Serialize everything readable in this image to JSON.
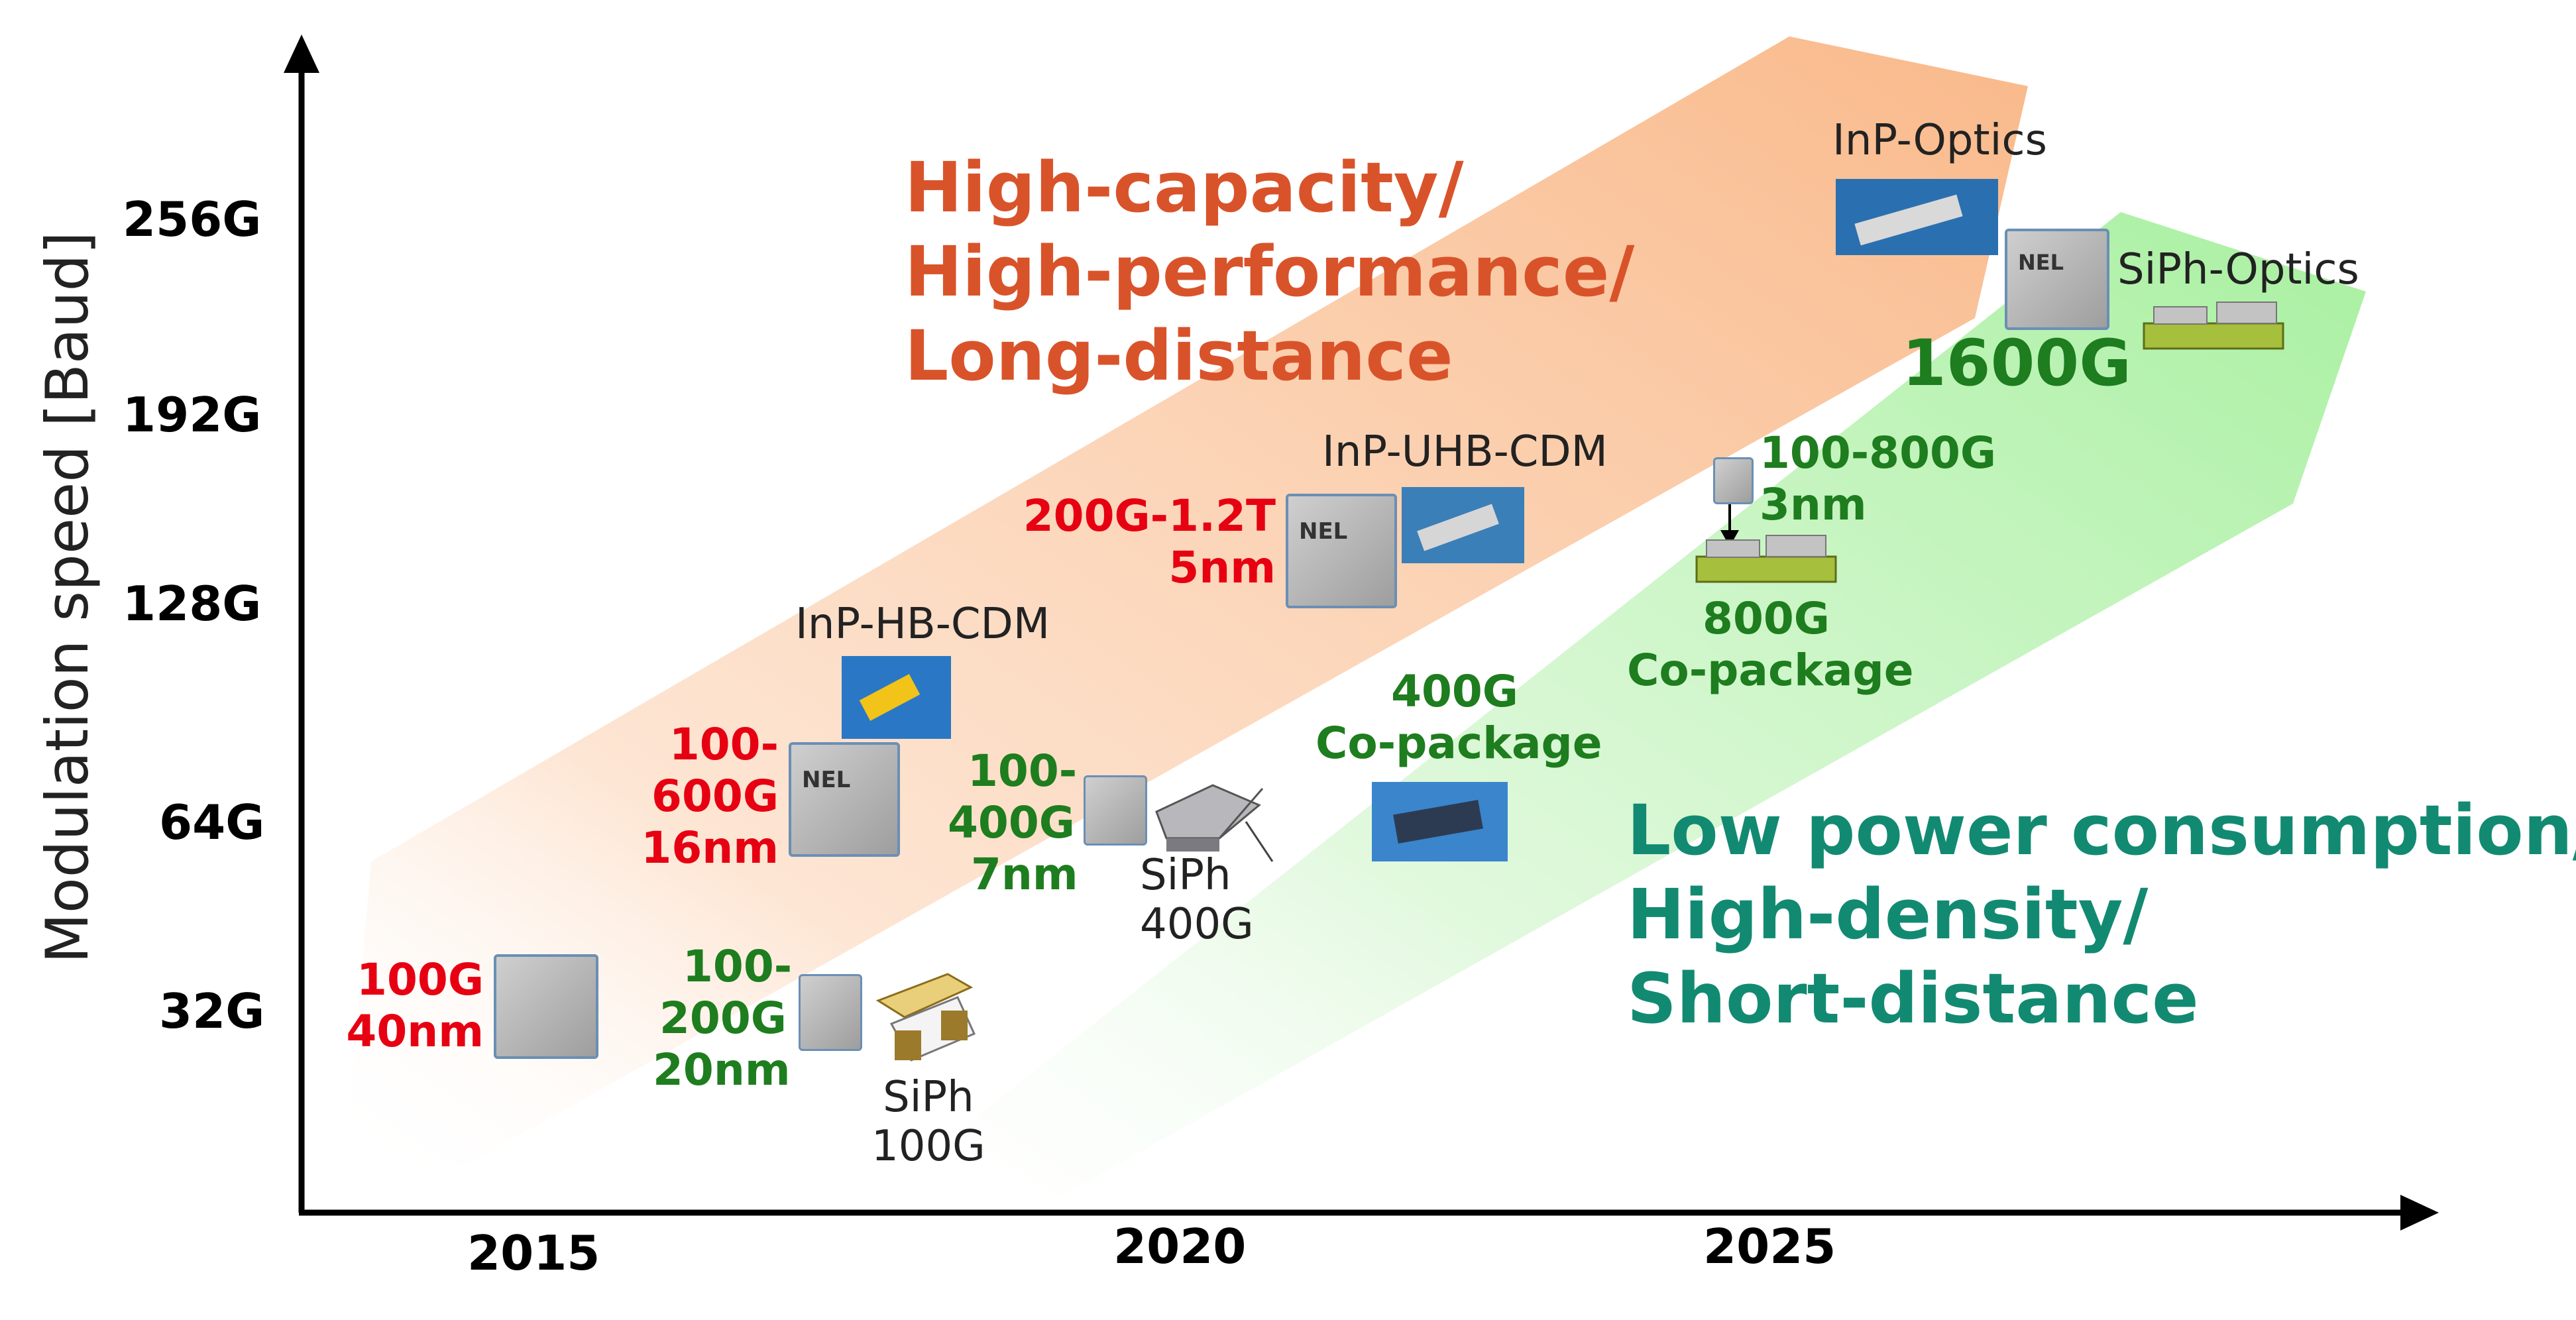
{
  "axes": {
    "y_label": "Modulation speed [Baud]",
    "y_ticks": [
      "256G",
      "192G",
      "128G",
      "64G",
      "32G"
    ],
    "x_ticks": [
      "2015",
      "2020",
      "2025"
    ]
  },
  "bands": {
    "upper": {
      "color": "#f9b98a",
      "lines": [
        "High-capacity/",
        "High-performance/",
        "Long-distance"
      ]
    },
    "lower": {
      "color": "#a8f0a0",
      "lines": [
        "Low power consumption/",
        "High-density/",
        "Short-distance"
      ]
    }
  },
  "dsp_nodes": {
    "high": [
      {
        "line1": "100G",
        "line2": "40nm"
      },
      {
        "line1": "100-",
        "line2": "600G",
        "line3": "16nm"
      },
      {
        "line1": "200G-1.2T",
        "line2": "5nm"
      }
    ],
    "low": [
      {
        "line1": "100-",
        "line2": "200G",
        "line3": "20nm"
      },
      {
        "line1": "100-",
        "line2": "400G",
        "line3": "7nm"
      },
      {
        "line1": "100-800G",
        "line2": "3nm"
      }
    ],
    "top_label": "1600G"
  },
  "optics_labels": {
    "inp_hb": "InP-HB-CDM",
    "inp_uhb": "InP-UHB-CDM",
    "inp_optics": "InP-Optics",
    "siph_optics": "SiPh-Optics",
    "siph100": {
      "line1": "SiPh",
      "line2": "100G"
    },
    "siph400": {
      "line1": "SiPh",
      "line2": "400G"
    },
    "cpo400": {
      "line1": "400G",
      "line2": "Co-package"
    },
    "cpo800": {
      "line1": "800G",
      "line2": "Co-package"
    }
  },
  "chip_marking": "NEL",
  "colors": {
    "axis": "#000000",
    "red_text": "#e60012",
    "green_text": "#1e7d1e",
    "orange_heading": "#d9532a",
    "teal_heading": "#128a72"
  }
}
